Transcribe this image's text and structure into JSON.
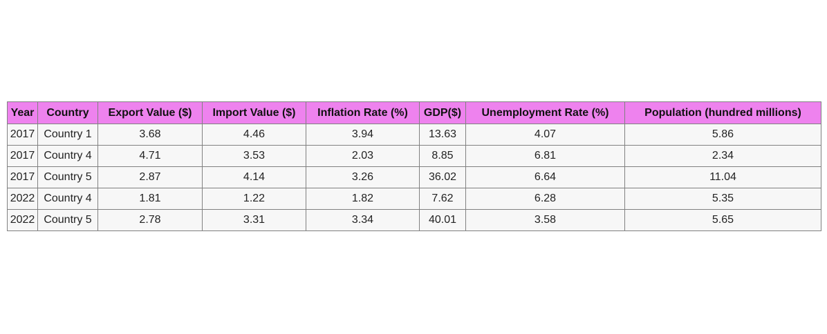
{
  "chart_data": {
    "type": "table",
    "columns": [
      "Year",
      "Country",
      "Export Value ($)",
      "Import Value ($)",
      "Inflation Rate (%)",
      "GDP($)",
      "Unemployment Rate (%)",
      "Population (hundred millions)"
    ],
    "rows": [
      [
        "2017",
        "Country 1",
        "3.68",
        "4.46",
        "3.94",
        "13.63",
        "4.07",
        "5.86"
      ],
      [
        "2017",
        "Country 4",
        "4.71",
        "3.53",
        "2.03",
        "8.85",
        "6.81",
        "2.34"
      ],
      [
        "2017",
        "Country 5",
        "2.87",
        "4.14",
        "3.26",
        "36.02",
        "6.64",
        "11.04"
      ],
      [
        "2022",
        "Country 4",
        "1.81",
        "1.22",
        "1.82",
        "7.62",
        "6.28",
        "5.35"
      ],
      [
        "2022",
        "Country 5",
        "2.78",
        "3.31",
        "3.34",
        "40.01",
        "3.58",
        "5.65"
      ]
    ],
    "header_color": "#ee82ee",
    "cell_color": "#f7f7f7",
    "border_color": "#808080"
  }
}
